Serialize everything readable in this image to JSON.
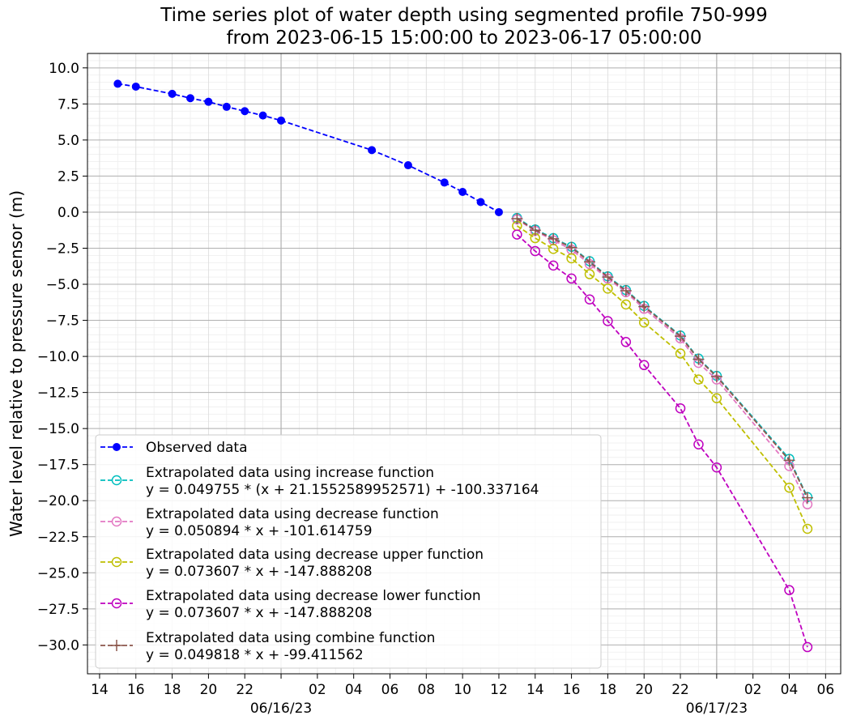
{
  "chart_data": {
    "type": "line",
    "title": "Time series plot of water depth using segmented profile 750-999",
    "subtitle": "from 2023-06-15 15:00:00 to 2023-06-17 05:00:00",
    "ylabel": "Water level relative to pressure sensor (m)",
    "xlabel": "",
    "xlim": [
      "2023-06-15 13:20",
      "2023-06-17 06:50"
    ],
    "ylim": [
      -32,
      11
    ],
    "grid": true,
    "legend_position": "lower-left",
    "x_tick_labels": [
      "14",
      "16",
      "18",
      "20",
      "22",
      "06/16/23",
      "02",
      "04",
      "06",
      "08",
      "10",
      "12",
      "14",
      "16",
      "18",
      "20",
      "22",
      "06/17/23",
      "02",
      "04",
      "06"
    ],
    "y_tick_labels": [
      "10.0",
      "7.5",
      "5.0",
      "2.5",
      "0.0",
      "−2.5",
      "−5.0",
      "−7.5",
      "−10.0",
      "−12.5",
      "−15.0",
      "−17.5",
      "−20.0",
      "−22.5",
      "−25.0",
      "−27.5",
      "−30.0"
    ],
    "series": [
      {
        "name": "Observed data",
        "equation": "",
        "color": "#0000ff",
        "marker": "filled-circle",
        "x": [
          "2023-06-15 15:00",
          "2023-06-15 16:00",
          "2023-06-15 18:00",
          "2023-06-15 19:00",
          "2023-06-15 20:00",
          "2023-06-15 21:00",
          "2023-06-15 22:00",
          "2023-06-15 23:00",
          "2023-06-16 00:00",
          "2023-06-16 05:00",
          "2023-06-16 07:00",
          "2023-06-16 09:00",
          "2023-06-16 10:00",
          "2023-06-16 11:00",
          "2023-06-16 12:00"
        ],
        "y": [
          8.9,
          8.7,
          8.2,
          7.9,
          7.65,
          7.3,
          7.0,
          6.7,
          6.35,
          4.3,
          3.25,
          2.05,
          1.4,
          0.7,
          0.0
        ]
      },
      {
        "name": "Extrapolated data using increase function",
        "equation": "y = 0.049755 * (x + 21.1552589952571) + -100.337164",
        "color": "#00bfbf",
        "marker": "open-circle",
        "x": [
          "2023-06-16 13:00",
          "2023-06-16 14:00",
          "2023-06-16 15:00",
          "2023-06-16 16:00",
          "2023-06-16 17:00",
          "2023-06-16 18:00",
          "2023-06-16 19:00",
          "2023-06-16 20:00",
          "2023-06-16 22:00",
          "2023-06-16 23:00",
          "2023-06-17 00:00",
          "2023-06-17 04:00",
          "2023-06-17 05:00"
        ],
        "y": [
          -0.4,
          -1.2,
          -1.8,
          -2.4,
          -3.4,
          -4.45,
          -5.4,
          -6.5,
          -8.55,
          -10.15,
          -11.35,
          -17.1,
          -19.75
        ]
      },
      {
        "name": "Extrapolated data using decrease function",
        "equation": "y = 0.050894 * x + -101.614759",
        "color": "#e377c2",
        "marker": "open-circle",
        "x": [
          "2023-06-16 13:00",
          "2023-06-16 14:00",
          "2023-06-16 15:00",
          "2023-06-16 16:00",
          "2023-06-16 17:00",
          "2023-06-16 18:00",
          "2023-06-16 19:00",
          "2023-06-16 20:00",
          "2023-06-16 22:00",
          "2023-06-16 23:00",
          "2023-06-17 00:00",
          "2023-06-17 04:00",
          "2023-06-17 05:00"
        ],
        "y": [
          -0.5,
          -1.3,
          -1.95,
          -2.6,
          -3.6,
          -4.6,
          -5.55,
          -6.7,
          -8.75,
          -10.45,
          -11.6,
          -17.6,
          -20.25
        ]
      },
      {
        "name": "Extrapolated data using decrease upper function",
        "equation": "y = 0.073607 * x + -147.888208",
        "color": "#bfbf00",
        "marker": "open-circle",
        "x": [
          "2023-06-16 13:00",
          "2023-06-16 14:00",
          "2023-06-16 15:00",
          "2023-06-16 16:00",
          "2023-06-16 17:00",
          "2023-06-16 18:00",
          "2023-06-16 19:00",
          "2023-06-16 20:00",
          "2023-06-16 22:00",
          "2023-06-16 23:00",
          "2023-06-17 00:00",
          "2023-06-17 04:00",
          "2023-06-17 05:00"
        ],
        "y": [
          -0.95,
          -1.8,
          -2.55,
          -3.2,
          -4.3,
          -5.3,
          -6.4,
          -7.65,
          -9.8,
          -11.6,
          -12.9,
          -19.1,
          -21.95
        ]
      },
      {
        "name": "Extrapolated data using decrease lower function",
        "equation": "y = 0.073607 * x + -147.888208",
        "color": "#bf00bf",
        "marker": "open-circle",
        "x": [
          "2023-06-16 13:00",
          "2023-06-16 14:00",
          "2023-06-16 15:00",
          "2023-06-16 16:00",
          "2023-06-16 17:00",
          "2023-06-16 18:00",
          "2023-06-16 19:00",
          "2023-06-16 20:00",
          "2023-06-16 22:00",
          "2023-06-16 23:00",
          "2023-06-17 00:00",
          "2023-06-17 04:00",
          "2023-06-17 05:00"
        ],
        "y": [
          -1.55,
          -2.7,
          -3.7,
          -4.6,
          -6.05,
          -7.55,
          -9.0,
          -10.6,
          -13.6,
          -16.1,
          -17.7,
          -26.2,
          -30.15
        ]
      },
      {
        "name": "Extrapolated data using combine function",
        "equation": "y = 0.049818 * x + -99.411562",
        "color": "#8c564b",
        "marker": "plus",
        "x": [
          "2023-06-16 13:00",
          "2023-06-16 14:00",
          "2023-06-16 15:00",
          "2023-06-16 16:00",
          "2023-06-16 17:00",
          "2023-06-16 18:00",
          "2023-06-16 19:00",
          "2023-06-16 20:00",
          "2023-06-16 22:00",
          "2023-06-16 23:00",
          "2023-06-17 00:00",
          "2023-06-17 04:00",
          "2023-06-17 05:00"
        ],
        "y": [
          -0.45,
          -1.25,
          -1.85,
          -2.45,
          -3.45,
          -4.5,
          -5.45,
          -6.55,
          -8.6,
          -10.2,
          -11.4,
          -17.2,
          -19.8
        ]
      }
    ]
  }
}
